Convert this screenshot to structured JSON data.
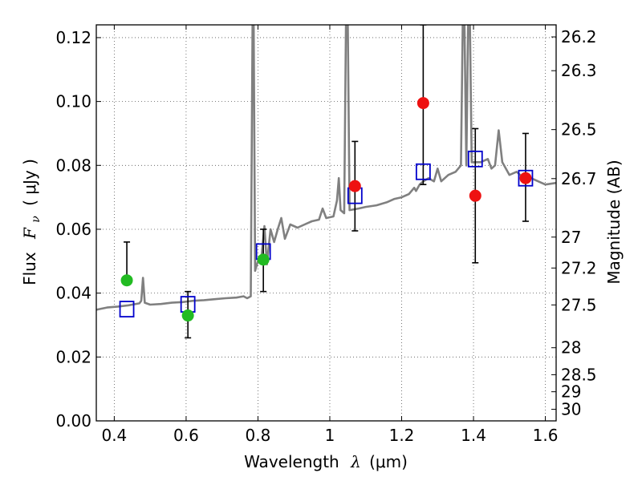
{
  "chart_data": {
    "type": "scatter",
    "xlabel": "Wavelength",
    "xlabel_symbol": "λ",
    "xlabel_unit": "(μm)",
    "ylabel": "Flux",
    "ylabel_symbol": "F",
    "ylabel_subscript": "ν",
    "ylabel_unit": "( μJy )",
    "y2label": "Magnitude (AB)",
    "xlim": [
      0.35,
      1.63
    ],
    "ylim": [
      0.0,
      0.124
    ],
    "grid": true,
    "x_ticks": [
      0.4,
      0.6,
      0.8,
      1.0,
      1.2,
      1.4,
      1.6
    ],
    "x_tick_labels": [
      "0.4",
      "0.6",
      "0.8",
      "1",
      "1.2",
      "1.4",
      "1.6"
    ],
    "y_ticks": [
      0.0,
      0.02,
      0.04,
      0.06,
      0.08,
      0.1,
      0.12
    ],
    "y_tick_labels": [
      "0.00",
      "0.02",
      "0.04",
      "0.06",
      "0.08",
      "0.10",
      "0.12"
    ],
    "magnitude_ticks": [
      {
        "label": "26.2",
        "mag": 26.2
      },
      {
        "label": "26.3",
        "mag": 26.3
      },
      {
        "label": "26.5",
        "mag": 26.5
      },
      {
        "label": "26.7",
        "mag": 26.7
      },
      {
        "label": "27",
        "mag": 27.0
      },
      {
        "label": "27.2",
        "mag": 27.2
      },
      {
        "label": "27.5",
        "mag": 27.5
      },
      {
        "label": "28",
        "mag": 28.0
      },
      {
        "label": "28.5",
        "mag": 28.5
      },
      {
        "label": "29",
        "mag": 29.0
      },
      {
        "label": "30",
        "mag": 30.0
      }
    ],
    "series": [
      {
        "kind": "line",
        "color": "#808080",
        "points": [
          [
            0.35,
            0.0348
          ],
          [
            0.38,
            0.0355
          ],
          [
            0.41,
            0.0358
          ],
          [
            0.44,
            0.0362
          ],
          [
            0.47,
            0.0368
          ],
          [
            0.475,
            0.0376
          ],
          [
            0.48,
            0.0448
          ],
          [
            0.485,
            0.037
          ],
          [
            0.5,
            0.0364
          ],
          [
            0.53,
            0.0366
          ],
          [
            0.56,
            0.037
          ],
          [
            0.59,
            0.0372
          ],
          [
            0.62,
            0.0376
          ],
          [
            0.65,
            0.0378
          ],
          [
            0.68,
            0.0381
          ],
          [
            0.71,
            0.0384
          ],
          [
            0.74,
            0.0386
          ],
          [
            0.76,
            0.039
          ],
          [
            0.77,
            0.0384
          ],
          [
            0.78,
            0.039
          ],
          [
            0.785,
            0.124
          ],
          [
            0.788,
            0.124
          ],
          [
            0.792,
            0.047
          ],
          [
            0.8,
            0.05
          ],
          [
            0.81,
            0.0515
          ],
          [
            0.818,
            0.061
          ],
          [
            0.825,
            0.049
          ],
          [
            0.835,
            0.06
          ],
          [
            0.845,
            0.056
          ],
          [
            0.855,
            0.06
          ],
          [
            0.865,
            0.0635
          ],
          [
            0.875,
            0.057
          ],
          [
            0.89,
            0.0615
          ],
          [
            0.91,
            0.0605
          ],
          [
            0.93,
            0.0615
          ],
          [
            0.95,
            0.0625
          ],
          [
            0.97,
            0.063
          ],
          [
            0.98,
            0.0665
          ],
          [
            0.99,
            0.0635
          ],
          [
            1.01,
            0.064
          ],
          [
            1.02,
            0.069
          ],
          [
            1.025,
            0.076
          ],
          [
            1.03,
            0.066
          ],
          [
            1.04,
            0.065
          ],
          [
            1.045,
            0.124
          ],
          [
            1.05,
            0.124
          ],
          [
            1.055,
            0.066
          ],
          [
            1.08,
            0.0665
          ],
          [
            1.1,
            0.067
          ],
          [
            1.13,
            0.0675
          ],
          [
            1.16,
            0.0685
          ],
          [
            1.18,
            0.0695
          ],
          [
            1.2,
            0.07
          ],
          [
            1.22,
            0.071
          ],
          [
            1.235,
            0.073
          ],
          [
            1.24,
            0.072
          ],
          [
            1.25,
            0.074
          ],
          [
            1.26,
            0.075
          ],
          [
            1.275,
            0.076
          ],
          [
            1.29,
            0.075
          ],
          [
            1.3,
            0.079
          ],
          [
            1.31,
            0.075
          ],
          [
            1.33,
            0.077
          ],
          [
            1.35,
            0.078
          ],
          [
            1.365,
            0.08
          ],
          [
            1.37,
            0.124
          ],
          [
            1.375,
            0.124
          ],
          [
            1.38,
            0.08
          ],
          [
            1.385,
            0.124
          ],
          [
            1.39,
            0.124
          ],
          [
            1.395,
            0.081
          ],
          [
            1.42,
            0.081
          ],
          [
            1.44,
            0.082
          ],
          [
            1.45,
            0.079
          ],
          [
            1.46,
            0.08
          ],
          [
            1.47,
            0.091
          ],
          [
            1.48,
            0.081
          ],
          [
            1.5,
            0.077
          ],
          [
            1.52,
            0.078
          ],
          [
            1.54,
            0.076
          ],
          [
            1.56,
            0.076
          ],
          [
            1.58,
            0.075
          ],
          [
            1.6,
            0.074
          ],
          [
            1.63,
            0.0745
          ]
        ]
      },
      {
        "kind": "model_boxes",
        "marker": "open-square",
        "color": "#0000cc",
        "points": [
          [
            0.435,
            0.035
          ],
          [
            0.605,
            0.0365
          ],
          [
            0.815,
            0.053
          ],
          [
            1.07,
            0.0705
          ],
          [
            1.26,
            0.078
          ],
          [
            1.405,
            0.082
          ],
          [
            1.545,
            0.076
          ]
        ]
      },
      {
        "kind": "observed",
        "marker": "filled-circle",
        "color": "#22bb22",
        "points": [
          {
            "x": 0.435,
            "y": 0.044,
            "err_lo": null,
            "err_hi": 0.056
          },
          {
            "x": 0.605,
            "y": 0.033,
            "err_lo": 0.026,
            "err_hi": 0.0405
          },
          {
            "x": 0.815,
            "y": 0.0505,
            "err_lo": 0.0405,
            "err_hi": 0.06
          }
        ]
      },
      {
        "kind": "observed",
        "marker": "filled-circle",
        "color": "#ee1111",
        "points": [
          {
            "x": 1.07,
            "y": 0.0735,
            "err_lo": 0.0595,
            "err_hi": 0.0875
          },
          {
            "x": 1.26,
            "y": 0.0995,
            "err_lo": 0.074,
            "err_hi": 0.124
          },
          {
            "x": 1.405,
            "y": 0.0705,
            "err_lo": 0.0495,
            "err_hi": 0.0915
          },
          {
            "x": 1.545,
            "y": 0.076,
            "err_lo": 0.0625,
            "err_hi": 0.09
          }
        ]
      }
    ]
  }
}
